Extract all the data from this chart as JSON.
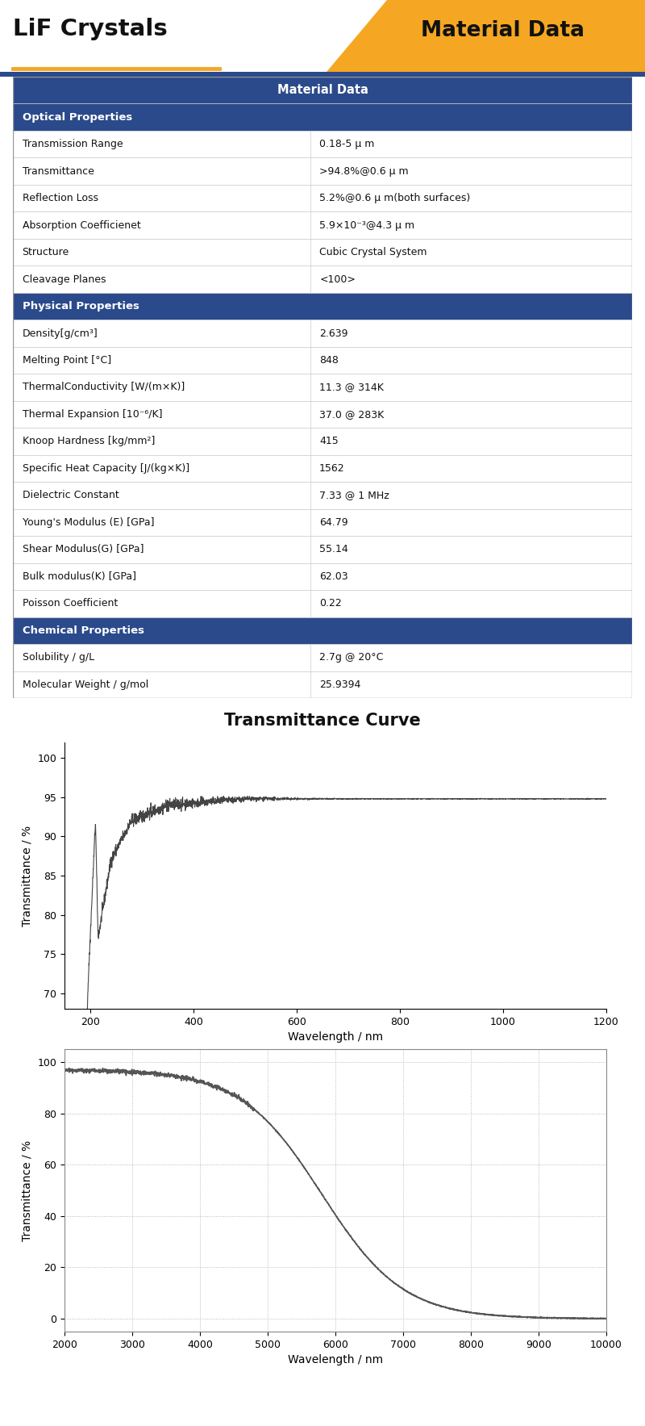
{
  "title": "LiF Crystals",
  "header_right": "Material Data",
  "table_title": "Material Data",
  "header_bg": "#F5A623",
  "section_bg": "#2B4A8B",
  "row_bg1": "#ffffff",
  "row_bg2": "#f9f9f9",
  "border_color": "#cccccc",
  "title_underline_color": "#F5A623",
  "top_bar_color": "#2B4A8B",
  "table_data": [
    {
      "section": "Optical Properties",
      "rows": [
        [
          "Transmission Range",
          "0.18-5 μ m"
        ],
        [
          "Transmittance",
          ">94.8%@0.6 μ m"
        ],
        [
          "Reflection Loss",
          "5.2%@0.6 μ m(both surfaces)"
        ],
        [
          "Absorption Coefficienet",
          "5.9×10⁻³@4.3 μ m"
        ],
        [
          "Structure",
          "Cubic Crystal System"
        ],
        [
          "Cleavage Planes",
          "<100>"
        ]
      ]
    },
    {
      "section": "Physical Properties",
      "rows": [
        [
          "Density[g/cm³]",
          "2.639"
        ],
        [
          "Melting Point [°C]",
          "848"
        ],
        [
          "ThermalConductivity [W/(m×K)]",
          "11.3 @ 314K"
        ],
        [
          "Thermal Expansion [10⁻⁶/K]",
          "37.0 @ 283K"
        ],
        [
          "Knoop Hardness [kg/mm²]",
          "415"
        ],
        [
          "Specific Heat Capacity [J/(kg×K)]",
          "1562"
        ],
        [
          "Dielectric Constant",
          "7.33 @ 1 MHz"
        ],
        [
          "Young's Modulus (E) [GPa]",
          "64.79"
        ],
        [
          "Shear Modulus(G) [GPa]",
          "55.14"
        ],
        [
          "Bulk modulus(K) [GPa]",
          "62.03"
        ],
        [
          "Poisson Coefficient",
          "0.22"
        ]
      ]
    },
    {
      "section": "Chemical Properties",
      "rows": [
        [
          "Solubility / g/L",
          "2.7g @ 20°C"
        ],
        [
          "Molecular Weight / g/mol",
          "25.9394"
        ]
      ]
    }
  ],
  "curve1_title": "Transmittance Curve",
  "curve1_xlabel": "Wavelength / nm",
  "curve1_ylabel": "Transmittance / %",
  "curve1_xlim": [
    150,
    1200
  ],
  "curve1_ylim": [
    68,
    102
  ],
  "curve1_xticks": [
    200,
    400,
    600,
    800,
    1000,
    1200
  ],
  "curve1_yticks": [
    70,
    75,
    80,
    85,
    90,
    95,
    100
  ],
  "curve2_xlabel": "Wavelength / nm",
  "curve2_ylabel": "Transmittance / %",
  "curve2_xlim": [
    2000,
    10000
  ],
  "curve2_ylim": [
    -5,
    105
  ],
  "curve2_xticks": [
    2000,
    3000,
    4000,
    5000,
    6000,
    7000,
    8000,
    9000,
    10000
  ],
  "curve2_yticks": [
    0,
    20,
    40,
    60,
    80,
    100
  ]
}
